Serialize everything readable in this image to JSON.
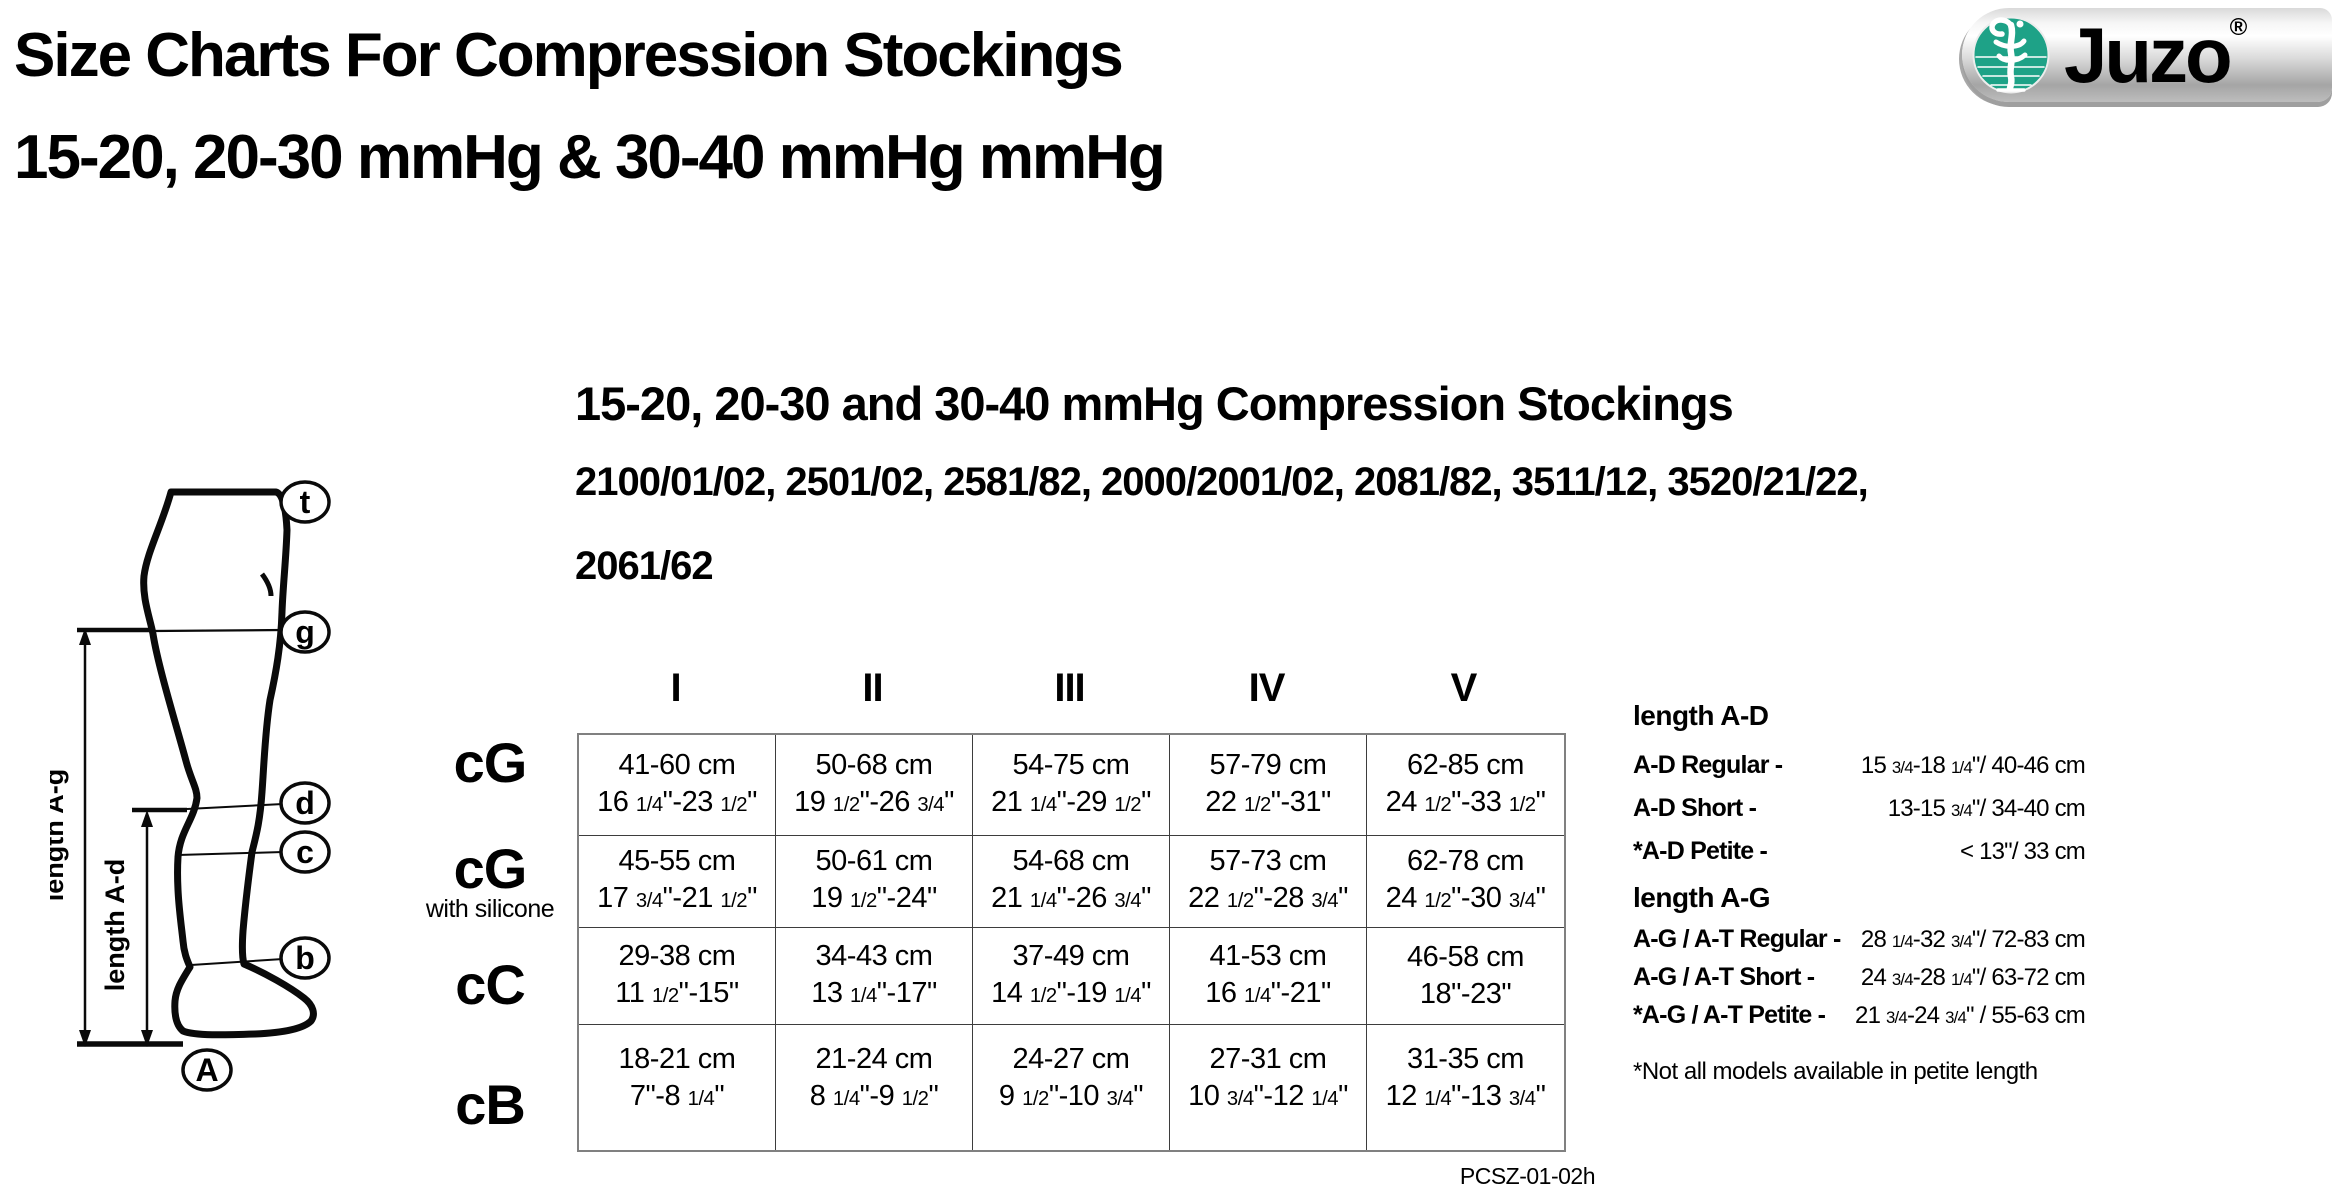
{
  "page": {
    "title_line1": "Size Charts For Compression Stockings",
    "title_line2": "15-20, 20-30 mmHg & 30-40 mmHg mmHg",
    "doc_code": "PCSZ-01-02h"
  },
  "logo": {
    "brand": "Juzo",
    "registered_mark": "®",
    "emblem_icon": "staff-of-aesculapius-icon",
    "emblem_color": "#1EA287"
  },
  "section": {
    "heading": "15-20, 20-30 and 30-40 mmHg Compression Stockings",
    "models_line1": "2100/01/02, 2501/02, 2581/82, 2000/2001/02, 2081/82, 3511/12, 3520/21/22,",
    "models_line2": "2061/62"
  },
  "diagram": {
    "points": [
      "t",
      "g",
      "d",
      "c",
      "b",
      "A"
    ],
    "length_ag_label": "length A-g",
    "length_ad_label": "length A-d"
  },
  "size_table": {
    "columns": [
      "I",
      "II",
      "III",
      "IV",
      "V"
    ],
    "rows": [
      {
        "label": "cG",
        "sublabel": "",
        "cells": [
          {
            "cm": "41-60 cm",
            "in": "16 1/4\"-23 1/2\""
          },
          {
            "cm": "50-68 cm",
            "in": "19 1/2\"-26 3/4\""
          },
          {
            "cm": "54-75 cm",
            "in": "21 1/4\"-29 1/2\""
          },
          {
            "cm": "57-79 cm",
            "in": "22 1/2\"-31\""
          },
          {
            "cm": "62-85 cm",
            "in": "24 1/2\"-33 1/2\""
          }
        ]
      },
      {
        "label": "cG",
        "sublabel": "with silicone",
        "cells": [
          {
            "cm": "45-55 cm",
            "in": "17 3/4\"-21 1/2\""
          },
          {
            "cm": "50-61 cm",
            "in": "19 1/2\"-24\""
          },
          {
            "cm": "54-68 cm",
            "in": "21 1/4\"-26 3/4\""
          },
          {
            "cm": "57-73 cm",
            "in": "22 1/2\"-28 3/4\""
          },
          {
            "cm": "62-78 cm",
            "in": "24 1/2\"-30 3/4\""
          }
        ]
      },
      {
        "label": "cC",
        "sublabel": "",
        "cells": [
          {
            "cm": "29-38 cm",
            "in": "11 1/2\"-15\""
          },
          {
            "cm": "34-43 cm",
            "in": "13 1/4\"-17\""
          },
          {
            "cm": "37-49 cm",
            "in": "14 1/2\"-19 1/4\""
          },
          {
            "cm": "41-53 cm",
            "in": "16 1/4\"-21\""
          },
          {
            "cm": "46-58 cm",
            "in": "18\"-23\""
          }
        ]
      },
      {
        "label": "cB",
        "sublabel": "",
        "cells": [
          {
            "cm": "18-21 cm",
            "in": "7\"-8 1/4\""
          },
          {
            "cm": "21-24 cm",
            "in": "8 1/4\"-9 1/2\""
          },
          {
            "cm": "24-27 cm",
            "in": "9 1/2\"-10 3/4\""
          },
          {
            "cm": "27-31 cm",
            "in": "10 3/4\"-12 1/4\""
          },
          {
            "cm": "31-35 cm",
            "in": "12 1/4\"-13 3/4\""
          }
        ]
      }
    ]
  },
  "length_info": {
    "ad": {
      "heading": "length A-D",
      "rows": [
        {
          "label": "A-D Regular -",
          "value": "15 3/4-18 1/4\"/ 40-46 cm"
        },
        {
          "label": "A-D Short -",
          "value": "13-15 3/4\"/ 34-40 cm"
        },
        {
          "label": "*A-D Petite -",
          "value": "< 13\"/ 33 cm"
        }
      ]
    },
    "ag": {
      "heading": "length A-G",
      "rows": [
        {
          "label": "A-G / A-T Regular -",
          "value": "28 1/4-32 3/4\"/ 72-83 cm"
        },
        {
          "label": "A-G / A-T Short -",
          "value": "24 3/4-28 1/4\"/ 63-72 cm"
        },
        {
          "label": "*A-G / A-T Petite -",
          "value": "21 3/4-24 3/4\" / 55-63 cm"
        }
      ]
    },
    "note": "*Not all models available in petite length"
  }
}
